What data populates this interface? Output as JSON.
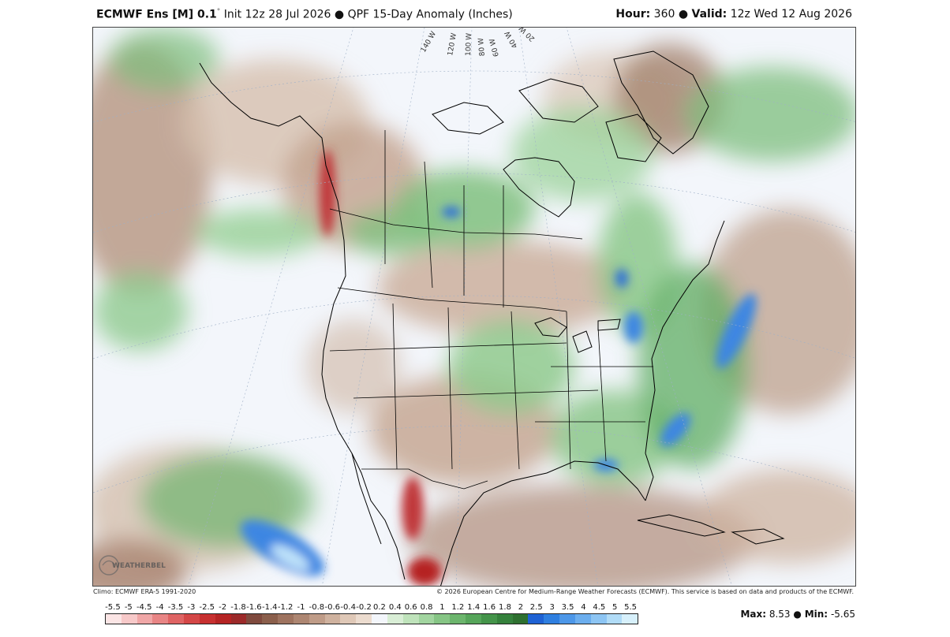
{
  "header": {
    "model": "ECMWF Ens [M] 0.1",
    "degree": "°",
    "init": "Init 12z 28 Jul 2026",
    "sep": "●",
    "product": "QPF 15-Day Anomaly (Inches)",
    "hour_label": "Hour:",
    "hour": "360",
    "valid_label": "Valid:",
    "valid": "12z Wed 12 Aug 2026"
  },
  "footer": {
    "climo": "Climo: ECMWF ERA-5 1991-2020",
    "copyright": "© 2026 European Centre for Medium-Range Weather Forecasts (ECMWF). This service is based on data and products of the ECMWF."
  },
  "map": {
    "longitudes": [
      "140 W",
      "120 W",
      "100 W",
      "80 W",
      "60 W",
      "40 W",
      "20 W"
    ]
  },
  "logo": {
    "text": "WEATHERBELL"
  },
  "colorbar": {
    "labels": [
      "-5.5",
      "-5",
      "-4.5",
      "-4",
      "-3.5",
      "-3",
      "-2.5",
      "-2",
      "-1.8",
      "-1.6",
      "-1.4",
      "-1.2",
      "-1",
      "-0.8",
      "-0.6",
      "-0.4",
      "-0.2",
      "0.2",
      "0.4",
      "0.6",
      "0.8",
      "1",
      "1.2",
      "1.4",
      "1.6",
      "1.8",
      "2",
      "2.5",
      "3",
      "3.5",
      "4",
      "4.5",
      "5",
      "5.5"
    ],
    "colors": [
      "#fbe5e5",
      "#f7c9c9",
      "#f0a7a7",
      "#e88585",
      "#df6464",
      "#d44747",
      "#c73030",
      "#b52424",
      "#9c2a2a",
      "#7f4a3e",
      "#8b5f4c",
      "#9e735f",
      "#ad8672",
      "#bf9c88",
      "#cfb29f",
      "#dfc8b7",
      "#ecdccf",
      "#f3f6fb",
      "#d9eed6",
      "#bfe3bb",
      "#a2d5a0",
      "#86c585",
      "#6cb56d",
      "#56a55a",
      "#44944a",
      "#35813c",
      "#2e7030",
      "#1f62d4",
      "#2f7fe0",
      "#4d97e8",
      "#6caeee",
      "#8dc5f3",
      "#b1dcf7",
      "#d7f0fb"
    ]
  },
  "stats": {
    "max_label": "Max:",
    "max": "8.53",
    "sep": "●",
    "min_label": "Min:",
    "min": "-5.65"
  }
}
